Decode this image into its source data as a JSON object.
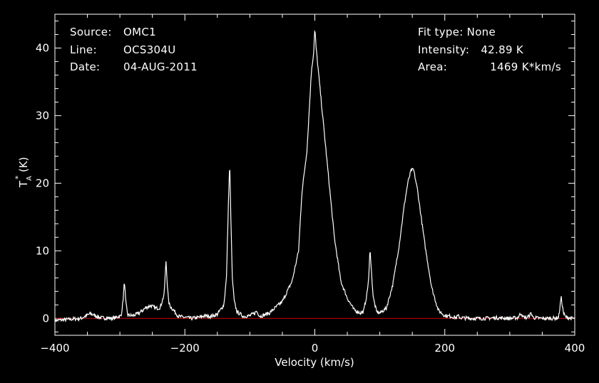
{
  "chart_data": {
    "type": "line",
    "xlabel": "Velocity (km/s)",
    "ylabel": {
      "main": "T",
      "sub": "A",
      "sup": "*",
      "unit": "(K)"
    },
    "xlim": [
      -400,
      400
    ],
    "ylim": [
      -2.5,
      45
    ],
    "x_ticks": [
      -400,
      -200,
      0,
      200,
      400
    ],
    "y_ticks": [
      0,
      10,
      20,
      30,
      40
    ],
    "x_tick_labels": [
      "−400",
      "−200",
      "0",
      "200",
      "400"
    ],
    "y_tick_labels": [
      "0",
      "10",
      "20",
      "30",
      "40"
    ],
    "baseline": {
      "y": 0,
      "color": "#cc0000"
    },
    "line_color": "#ffffff",
    "grid": false,
    "series": [
      {
        "x": [
          -400,
          -360,
          -350,
          -345,
          -340,
          -330,
          -310,
          -298,
          -295,
          -293,
          -291,
          -288,
          -280,
          -270,
          -260,
          -252,
          -245,
          -238,
          -232,
          -229,
          -227,
          -225,
          -222,
          -218,
          -210,
          -190,
          -175,
          -170,
          -160,
          -150,
          -140,
          -136,
          -133,
          -131,
          -129,
          -127,
          -124,
          -120,
          -110,
          -100,
          -92,
          -90,
          -88,
          -84,
          -70,
          -50,
          -35,
          -25,
          -20,
          -12,
          -5,
          -2,
          0,
          2,
          5,
          10,
          20,
          30,
          40,
          50,
          60,
          70,
          75,
          80,
          83,
          85,
          87,
          90,
          95,
          100,
          110,
          120,
          130,
          138,
          143,
          148,
          152,
          158,
          165,
          170,
          180,
          190,
          200,
          210,
          218,
          220,
          224,
          240,
          260,
          280,
          300,
          312,
          316,
          318,
          320,
          326,
          330,
          333,
          336,
          350,
          365,
          375,
          377,
          379,
          381,
          383,
          386,
          395,
          400
        ],
        "y": [
          -0.3,
          0,
          0.5,
          0.7,
          0.5,
          0.1,
          0,
          0.4,
          2.8,
          5.6,
          2.4,
          0.5,
          0.4,
          0.8,
          1.6,
          1.9,
          1.5,
          1.6,
          3.5,
          8.5,
          5,
          2.4,
          1.7,
          1.3,
          0.3,
          0,
          0.2,
          0.4,
          0.3,
          0.6,
          2,
          6,
          17,
          23,
          14,
          6,
          2.5,
          1,
          0.3,
          0.4,
          0.8,
          1.1,
          0.8,
          0.3,
          0.8,
          2.5,
          5.5,
          10,
          18.5,
          25,
          37,
          39,
          42.9,
          40,
          37,
          32,
          22,
          12,
          5.5,
          3,
          1.3,
          0.8,
          1,
          3.5,
          6,
          10.5,
          7,
          3,
          1,
          0.8,
          1.5,
          5,
          11,
          17,
          20,
          21.9,
          22,
          19,
          14,
          10.5,
          4.5,
          1.2,
          0.4,
          0.3,
          0.1,
          0.4,
          0.1,
          0,
          0,
          0.1,
          0,
          0.1,
          0.6,
          0.8,
          0.2,
          0.1,
          0.4,
          0.8,
          0.1,
          0,
          0,
          0.1,
          1.5,
          3.2,
          1.8,
          0.7,
          0.2,
          0,
          0
        ]
      }
    ]
  },
  "info_left": [
    {
      "key": "Source:",
      "value": "OMC1"
    },
    {
      "key": "Line:",
      "value": "OCS304U"
    },
    {
      "key": "Date:",
      "value": "04-AUG-2011"
    }
  ],
  "info_right": {
    "fit_type": "Fit type: None",
    "intensity_label": "Intensity:",
    "intensity_value": "42.89 K",
    "area_label": "Area:",
    "area_value": "1469 K*km/s"
  }
}
